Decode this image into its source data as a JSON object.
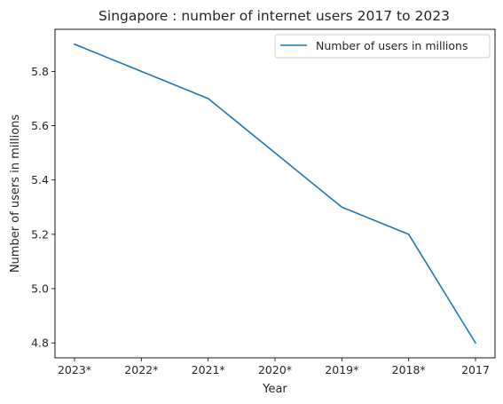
{
  "chart_data": {
    "type": "line",
    "title": "Singapore : number of internet users 2017 to 2023",
    "xlabel": "Year",
    "ylabel": "Number of users in millions",
    "categories": [
      "2023*",
      "2022*",
      "2021*",
      "2020*",
      "2019*",
      "2018*",
      "2017"
    ],
    "series": [
      {
        "name": "Number of users in millions",
        "values": [
          5.9,
          5.8,
          5.7,
          5.5,
          5.3,
          5.2,
          4.8
        ],
        "color": "#1f77b4"
      }
    ],
    "ylim": [
      4.745,
      5.955
    ],
    "yticks": [
      4.8,
      5.0,
      5.2,
      5.4,
      5.6,
      5.8
    ],
    "ytick_labels": [
      "4.8",
      "5.0",
      "5.2",
      "5.4",
      "5.6",
      "5.8"
    ],
    "grid": false,
    "legend_position": "top-right"
  }
}
